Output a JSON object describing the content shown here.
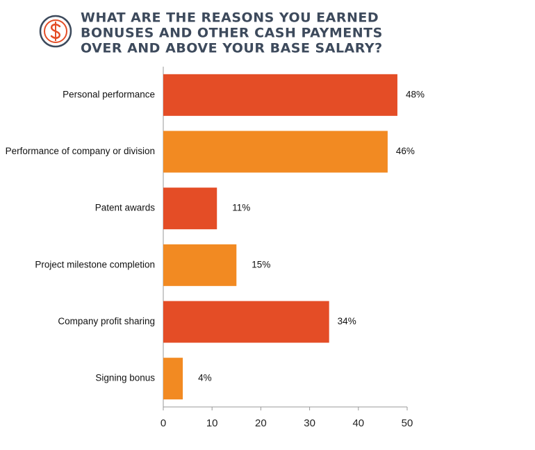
{
  "chart_data": {
    "type": "bar",
    "orientation": "horizontal",
    "title": [
      "WHAT ARE THE REASONS YOU EARNED",
      "BONUSES AND OTHER CASH PAYMENTS",
      "OVER AND ABOVE YOUR BASE SALARY?"
    ],
    "categories": [
      "Personal performance",
      "Performance of company or division",
      "Patent awards",
      "Project milestone completion",
      "Company profit sharing",
      "Signing bonus"
    ],
    "values": [
      48,
      46,
      11,
      15,
      34,
      4
    ],
    "value_labels": [
      "48%",
      "46%",
      "11%",
      "15%",
      "34%",
      "4%"
    ],
    "colors": [
      "#e44d26",
      "#f28a22",
      "#e44d26",
      "#f28a22",
      "#e44d26",
      "#f28a22"
    ],
    "xlim": [
      0,
      50
    ],
    "xticks": [
      0,
      10,
      20,
      30,
      40,
      50
    ],
    "grid": false
  }
}
